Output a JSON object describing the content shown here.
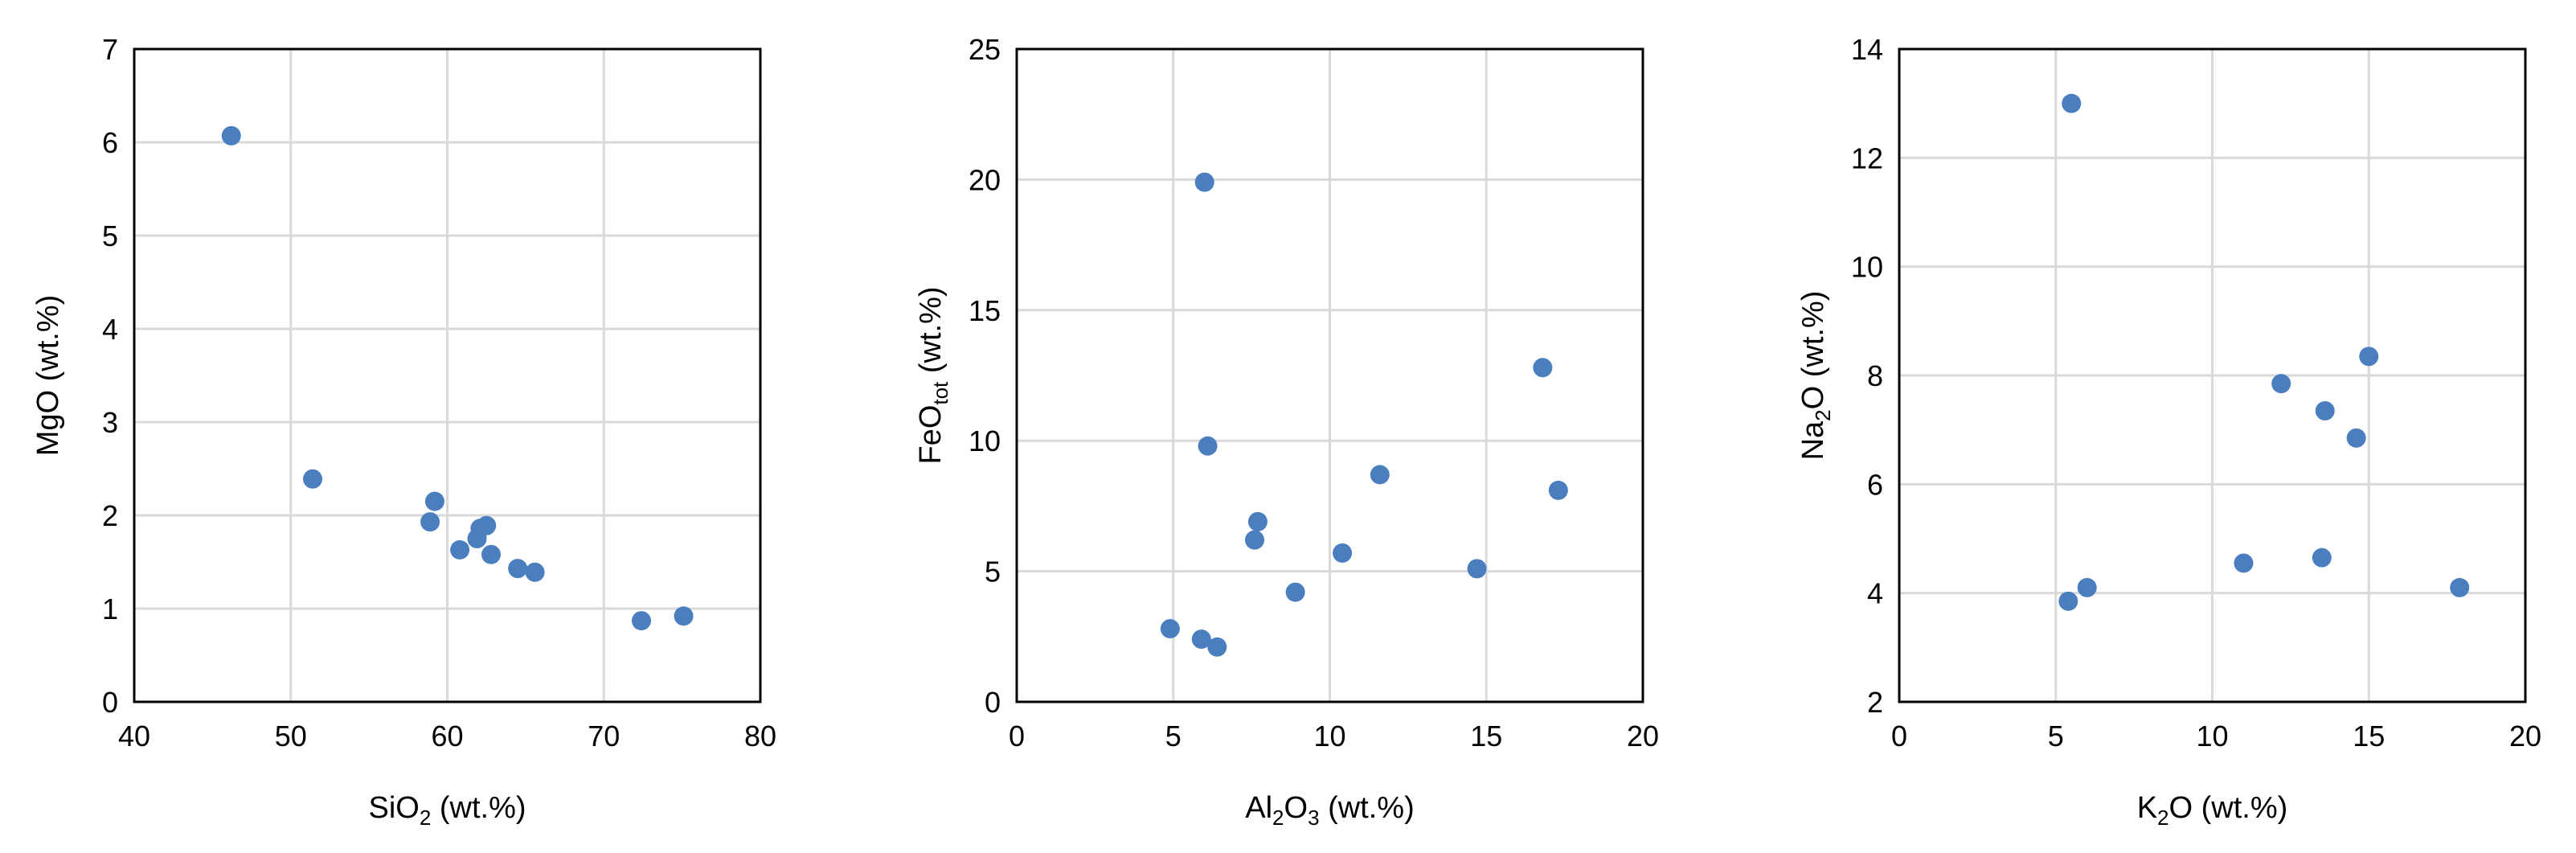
{
  "colors": {
    "marker": "#4a7ebf",
    "grid": "#d9d9d9",
    "frame": "#000000"
  },
  "chart_data": [
    {
      "type": "scatter",
      "title": "",
      "xlabel": {
        "main": "SiO",
        "sub": "2",
        "tail": " (wt.%)"
      },
      "ylabel": {
        "main": "MgO (wt.%)",
        "sub": "",
        "tail": ""
      },
      "xlim": [
        40,
        80
      ],
      "ylim": [
        0,
        7
      ],
      "xticks": [
        40,
        50,
        60,
        70,
        80
      ],
      "yticks": [
        0,
        1,
        2,
        3,
        4,
        5,
        6,
        7
      ],
      "grid": true,
      "points": [
        {
          "x": 46.2,
          "y": 6.07
        },
        {
          "x": 51.4,
          "y": 2.39
        },
        {
          "x": 59.2,
          "y": 2.15
        },
        {
          "x": 58.9,
          "y": 1.93
        },
        {
          "x": 62.1,
          "y": 1.86
        },
        {
          "x": 62.5,
          "y": 1.89
        },
        {
          "x": 61.9,
          "y": 1.75
        },
        {
          "x": 60.8,
          "y": 1.63
        },
        {
          "x": 62.8,
          "y": 1.58
        },
        {
          "x": 64.5,
          "y": 1.43
        },
        {
          "x": 65.6,
          "y": 1.39
        },
        {
          "x": 72.4,
          "y": 0.87
        },
        {
          "x": 75.1,
          "y": 0.92
        }
      ]
    },
    {
      "type": "scatter",
      "title": "",
      "xlabel": {
        "main": "Al",
        "sub": "2",
        "tail": "O",
        "sub2": "3",
        "tail2": " (wt.%)"
      },
      "ylabel": {
        "main": "FeO",
        "sub": "tot",
        "tail": " (wt.%)"
      },
      "xlim": [
        0,
        20
      ],
      "ylim": [
        0,
        25
      ],
      "xticks": [
        0,
        5,
        10,
        15,
        20
      ],
      "yticks": [
        0,
        5,
        10,
        15,
        20,
        25
      ],
      "grid": true,
      "points": [
        {
          "x": 6.0,
          "y": 19.9
        },
        {
          "x": 6.1,
          "y": 9.8
        },
        {
          "x": 16.8,
          "y": 12.8
        },
        {
          "x": 11.6,
          "y": 8.7
        },
        {
          "x": 17.3,
          "y": 8.1
        },
        {
          "x": 7.7,
          "y": 6.9
        },
        {
          "x": 7.6,
          "y": 6.2
        },
        {
          "x": 10.4,
          "y": 5.7
        },
        {
          "x": 14.7,
          "y": 5.1
        },
        {
          "x": 8.9,
          "y": 4.2
        },
        {
          "x": 4.9,
          "y": 2.8
        },
        {
          "x": 5.9,
          "y": 2.4
        },
        {
          "x": 6.4,
          "y": 2.1
        }
      ]
    },
    {
      "type": "scatter",
      "title": "",
      "xlabel": {
        "main": "K",
        "sub": "2",
        "tail": "O (wt.%)"
      },
      "ylabel": {
        "main": "Na",
        "sub": "2",
        "tail": "O (wt.%)"
      },
      "xlim": [
        0,
        20
      ],
      "ylim": [
        2,
        14
      ],
      "xticks": [
        0,
        5,
        10,
        15,
        20
      ],
      "yticks": [
        2,
        4,
        6,
        8,
        10,
        12,
        14
      ],
      "grid": true,
      "points": [
        {
          "x": 5.5,
          "y": 13.0
        },
        {
          "x": 15.0,
          "y": 8.35
        },
        {
          "x": 12.2,
          "y": 7.85
        },
        {
          "x": 13.6,
          "y": 7.35
        },
        {
          "x": 14.6,
          "y": 6.85
        },
        {
          "x": 11.0,
          "y": 4.55
        },
        {
          "x": 13.5,
          "y": 4.65
        },
        {
          "x": 17.9,
          "y": 4.1
        },
        {
          "x": 6.0,
          "y": 4.1
        },
        {
          "x": 5.4,
          "y": 3.85
        }
      ]
    }
  ]
}
